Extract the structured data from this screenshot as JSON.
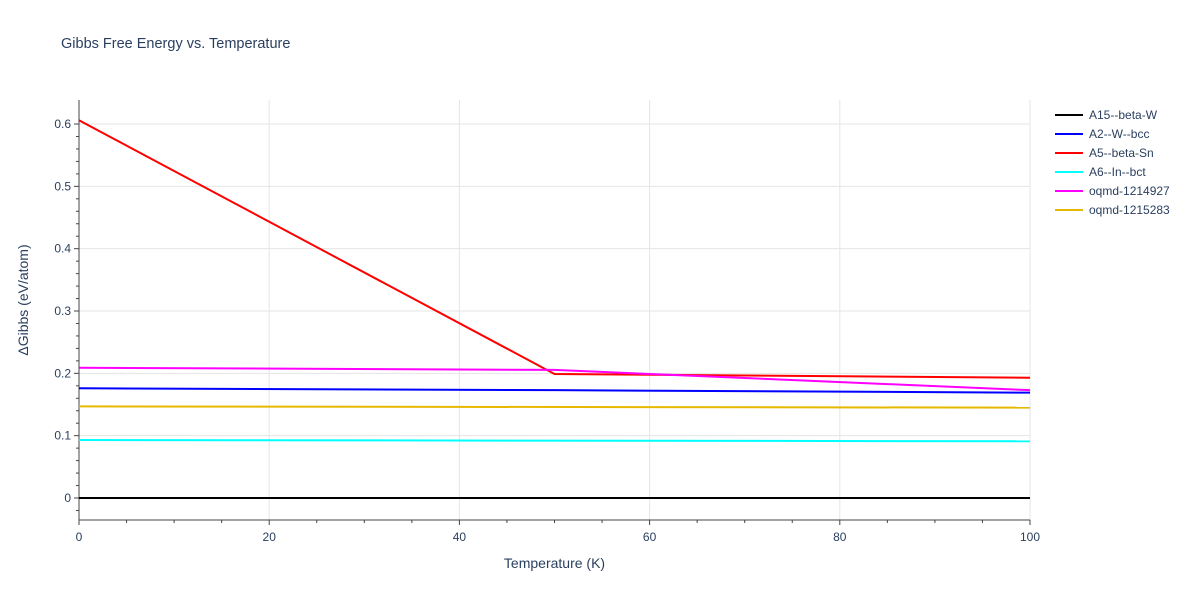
{
  "chart_data": {
    "type": "line",
    "title": "Gibbs Free Energy vs. Temperature",
    "xlabel": "Temperature (K)",
    "ylabel": "ΔGibbs (eV/atom)",
    "xlim": [
      0,
      100
    ],
    "ylim": [
      -0.035,
      0.64
    ],
    "xticks": [
      0,
      20,
      40,
      60,
      80,
      100
    ],
    "yticks": [
      0,
      0.1,
      0.2,
      0.3,
      0.4,
      0.5,
      0.6
    ],
    "ytick_labels": [
      "0",
      "0.1",
      "0.2",
      "0.3",
      "0.4",
      "0.5",
      "0.6"
    ],
    "grid": true,
    "legend_position": "right",
    "series": [
      {
        "name": "A15--beta-W",
        "color": "#000000",
        "x": [
          0,
          100
        ],
        "y": [
          0,
          0
        ]
      },
      {
        "name": "A2--W--bcc",
        "color": "#0000ff",
        "x": [
          0,
          50,
          100
        ],
        "y": [
          0.176,
          0.173,
          0.169
        ]
      },
      {
        "name": "A5--beta-Sn",
        "color": "#ff0000",
        "x": [
          0,
          50,
          100
        ],
        "y": [
          0.606,
          0.199,
          0.193
        ]
      },
      {
        "name": "A6--In--bct",
        "color": "#00ffff",
        "x": [
          0,
          100
        ],
        "y": [
          0.093,
          0.091
        ]
      },
      {
        "name": "oqmd-1214927",
        "color": "#ff00ff",
        "x": [
          0,
          50,
          100
        ],
        "y": [
          0.209,
          0.2055,
          0.173
        ]
      },
      {
        "name": "oqmd-1215283",
        "color": "#e6b800",
        "x": [
          0,
          100
        ],
        "y": [
          0.147,
          0.145
        ]
      }
    ]
  }
}
